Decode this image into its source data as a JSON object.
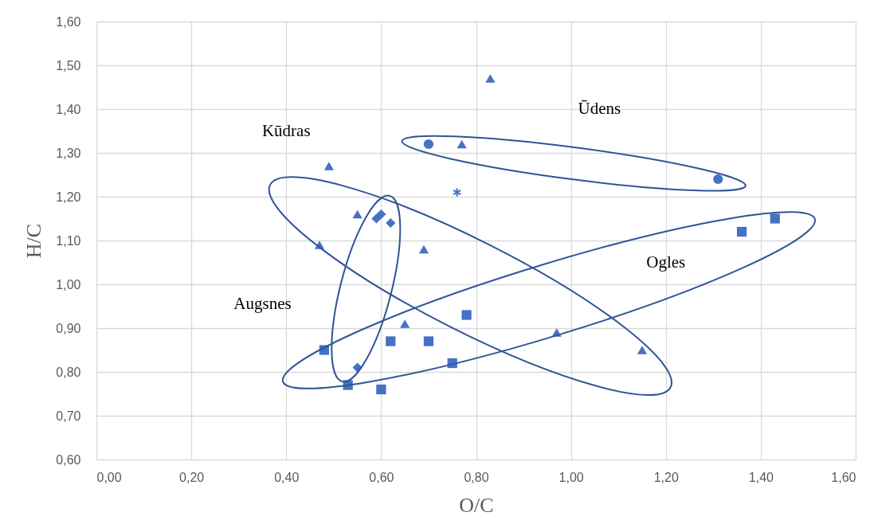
{
  "chart_data": {
    "type": "scatter",
    "xlabel": "O/C",
    "ylabel": "H/C",
    "xlim": [
      0,
      1.6
    ],
    "ylim": [
      0.6,
      1.6
    ],
    "xticks": [
      {
        "value": 0,
        "label": "0,00"
      },
      {
        "value": 0.2,
        "label": "0,20"
      },
      {
        "value": 0.4,
        "label": "0,40"
      },
      {
        "value": 0.6,
        "label": "0,60"
      },
      {
        "value": 0.8,
        "label": "0,80"
      },
      {
        "value": 1.0,
        "label": "1,00"
      },
      {
        "value": 1.2,
        "label": "1,20"
      },
      {
        "value": 1.4,
        "label": "1,40"
      },
      {
        "value": 1.6,
        "label": "1,60"
      }
    ],
    "yticks": [
      {
        "value": 0.6,
        "label": "0,60"
      },
      {
        "value": 0.7,
        "label": "0,70"
      },
      {
        "value": 0.8,
        "label": "0,80"
      },
      {
        "value": 0.9,
        "label": "0,90"
      },
      {
        "value": 1.0,
        "label": "1,00"
      },
      {
        "value": 1.1,
        "label": "1,10"
      },
      {
        "value": 1.2,
        "label": "1,20"
      },
      {
        "value": 1.3,
        "label": "1,30"
      },
      {
        "value": 1.4,
        "label": "1,40"
      },
      {
        "value": 1.5,
        "label": "1,50"
      },
      {
        "value": 1.6,
        "label": "1,60"
      }
    ],
    "grid": true,
    "annotations": [
      "Kūdras",
      "Ūdens",
      "Ogles",
      "Augsnes"
    ],
    "series": [
      {
        "marker": "triangle",
        "color": "#4472c4",
        "x": [
          0.83,
          0.77,
          0.49,
          0.55,
          0.47,
          0.69,
          0.65,
          0.97,
          1.15
        ],
        "values": [
          1.47,
          1.32,
          1.27,
          1.16,
          1.09,
          1.08,
          0.91,
          0.89,
          0.85
        ]
      },
      {
        "marker": "circle",
        "color": "#4472c4",
        "x": [
          0.7,
          1.31
        ],
        "values": [
          1.32,
          1.24
        ]
      },
      {
        "marker": "cross",
        "color": "#4472c4",
        "x": [
          0.76
        ],
        "values": [
          1.21
        ]
      },
      {
        "marker": "diamond",
        "color": "#4472c4",
        "x": [
          0.59,
          0.6,
          0.62,
          0.55
        ],
        "values": [
          1.15,
          1.16,
          1.14,
          0.81
        ]
      },
      {
        "marker": "square",
        "color": "#4472c4",
        "x": [
          0.48,
          0.53,
          0.6,
          0.62,
          0.7,
          0.75,
          0.78,
          1.36,
          1.43
        ],
        "values": [
          0.85,
          0.77,
          0.76,
          0.87,
          0.87,
          0.82,
          0.93,
          1.12,
          1.15
        ]
      }
    ]
  }
}
